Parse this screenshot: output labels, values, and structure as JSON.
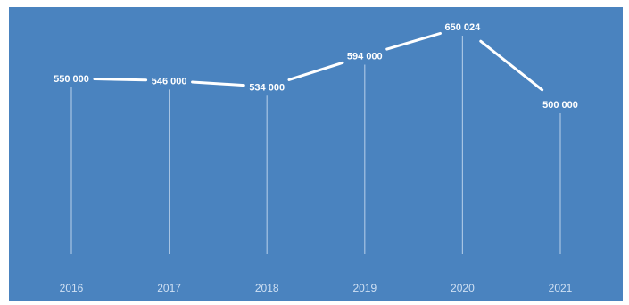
{
  "chart_data": {
    "type": "line",
    "categories": [
      "2016",
      "2017",
      "2018",
      "2019",
      "2020",
      "2021"
    ],
    "series": [
      {
        "values": [
          550000,
          546000,
          534000,
          594000,
          650024,
          500000
        ],
        "labels": [
          "550 000",
          "546 000",
          "534 000",
          "594 000",
          "650 024",
          "500 000"
        ]
      }
    ],
    "colors": {
      "background": "#4a83bf",
      "line": "#ffffff",
      "drop_lines": "#b8d0ea",
      "tick_text": "#cfe0f3"
    },
    "grid": false,
    "legend": "none"
  }
}
